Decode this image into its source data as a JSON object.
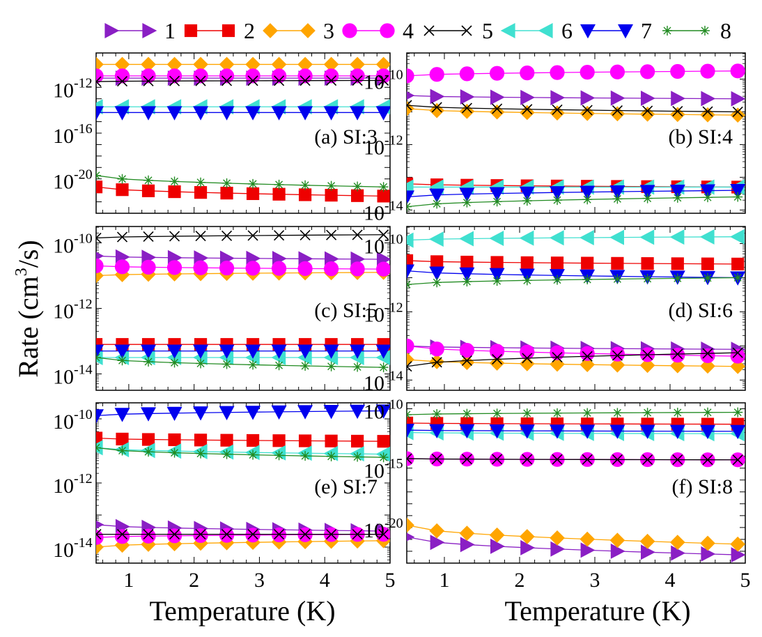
{
  "chart_data": {
    "type": "line",
    "y_scale": "log",
    "xlabel": "Temperature (K)",
    "ylabel_parts": {
      "main": "Rate (cm",
      "sup": "3",
      "tail": "/s)"
    },
    "legend": [
      {
        "name": "1",
        "color": "#8a1fc4",
        "marker": "tri-right"
      },
      {
        "name": "2",
        "color": "#ee0000",
        "marker": "square"
      },
      {
        "name": "3",
        "color": "#ffa500",
        "marker": "diamond"
      },
      {
        "name": "4",
        "color": "#ff00ff",
        "marker": "circle"
      },
      {
        "name": "5",
        "color": "#000000",
        "marker": "x"
      },
      {
        "name": "6",
        "color": "#40e0d0",
        "marker": "tri-left"
      },
      {
        "name": "7",
        "color": "#0000ee",
        "marker": "tri-down"
      },
      {
        "name": "8",
        "color": "#228b22",
        "marker": "star"
      }
    ],
    "x": [
      0.5,
      0.9,
      1.3,
      1.7,
      2.1,
      2.5,
      2.9,
      3.3,
      3.7,
      4.1,
      4.5,
      4.9
    ],
    "xlim": [
      0.5,
      5
    ],
    "xticks": [
      "1",
      "2",
      "3",
      "4",
      "5"
    ],
    "panels": [
      {
        "label": "(a) SI:3",
        "ylim_exp": [
          -23,
          -9
        ],
        "yticks": [
          {
            "base": "10",
            "exp": "-12"
          },
          {
            "base": "10",
            "exp": "-16"
          },
          {
            "base": "10",
            "exp": "-20"
          }
        ],
        "series": {
          "1": {
            "start": -11.2,
            "end": -11.2
          },
          "2": {
            "start": -20.7,
            "end": -21.5
          },
          "3": {
            "start": -10.0,
            "end": -10.0
          },
          "4": {
            "start": -11.0,
            "end": -11.0
          },
          "5": {
            "start": -11.5,
            "end": -11.4
          },
          "6": {
            "start": -13.7,
            "end": -13.7
          },
          "7": {
            "start": -14.2,
            "end": -14.2
          },
          "8": {
            "start": -19.7,
            "end": -20.7
          }
        }
      },
      {
        "label": "(b)  SI:4",
        "ylim_exp": [
          -14.1,
          -9.2
        ],
        "yticks": [
          {
            "base": "10",
            "exp": "-10"
          },
          {
            "base": "10",
            "exp": "-12"
          },
          {
            "base": "10",
            "exp": "-14"
          }
        ],
        "series": {
          "1": {
            "start": -10.5,
            "end": -10.6
          },
          "2": {
            "start": -13.2,
            "end": -13.3
          },
          "3": {
            "start": -10.9,
            "end": -11.1
          },
          "4": {
            "start": -9.9,
            "end": -9.75
          },
          "5": {
            "start": -10.8,
            "end": -11.0
          },
          "6": {
            "start": -13.3,
            "end": -13.3
          },
          "7": {
            "start": -13.6,
            "end": -13.4
          },
          "8": {
            "start": -13.9,
            "end": -13.6
          }
        }
      },
      {
        "label": "(c) SI:5",
        "ylim_exp": [
          -14.5,
          -9.5
        ],
        "yticks": [
          {
            "base": "10",
            "exp": "-10"
          },
          {
            "base": "10",
            "exp": "-12"
          },
          {
            "base": "10",
            "exp": "-14"
          }
        ],
        "series": {
          "1": {
            "start": -10.4,
            "end": -10.5
          },
          "2": {
            "start": -13.1,
            "end": -13.1
          },
          "3": {
            "start": -11.0,
            "end": -10.9
          },
          "4": {
            "start": -10.7,
            "end": -10.8
          },
          "5": {
            "start": -9.85,
            "end": -9.75
          },
          "6": {
            "start": -13.5,
            "end": -13.5
          },
          "7": {
            "start": -13.3,
            "end": -13.3
          },
          "8": {
            "start": -13.5,
            "end": -13.8
          }
        }
      },
      {
        "label": "(d) SI:6",
        "ylim_exp": [
          -14.3,
          -9.5
        ],
        "yticks": [
          {
            "base": "10",
            "exp": "-10"
          },
          {
            "base": "10",
            "exp": "-12"
          },
          {
            "base": "10",
            "exp": "-14"
          }
        ],
        "series": {
          "1": {
            "start": -13.0,
            "end": -13.1
          },
          "2": {
            "start": -10.5,
            "end": -10.6
          },
          "3": {
            "start": -13.4,
            "end": -13.6
          },
          "4": {
            "start": -13.0,
            "end": -13.3
          },
          "5": {
            "start": -13.6,
            "end": -13.2
          },
          "6": {
            "start": -9.9,
            "end": -9.8
          },
          "7": {
            "start": -10.8,
            "end": -11.0
          },
          "8": {
            "start": -11.2,
            "end": -11.0
          }
        }
      },
      {
        "label": "(e) SI:7",
        "ylim_exp": [
          -14.5,
          -9.5
        ],
        "yticks": [
          {
            "base": "10",
            "exp": "-10"
          },
          {
            "base": "10",
            "exp": "-12"
          },
          {
            "base": "10",
            "exp": "-14"
          }
        ],
        "series": {
          "1": {
            "start": -13.3,
            "end": -13.5
          },
          "2": {
            "start": -10.6,
            "end": -10.7
          },
          "3": {
            "start": -14.0,
            "end": -13.8
          },
          "4": {
            "start": -13.7,
            "end": -13.6
          },
          "5": {
            "start": -13.6,
            "end": -13.6
          },
          "6": {
            "start": -10.9,
            "end": -11.1
          },
          "7": {
            "start": -9.9,
            "end": -9.75
          },
          "8": {
            "start": -10.9,
            "end": -11.2
          }
        }
      },
      {
        "label": "(f) SI:8",
        "ylim_exp": [
          -23,
          -9.5
        ],
        "yticks": [
          {
            "base": "10",
            "exp": "-10"
          },
          {
            "base": "10",
            "exp": "-15"
          },
          {
            "base": "10",
            "exp": "-20"
          }
        ],
        "series": {
          "1": {
            "start": -20.8,
            "end": -22.3
          },
          "2": {
            "start": -11.2,
            "end": -11.3
          },
          "3": {
            "start": -19.8,
            "end": -21.4
          },
          "4": {
            "start": -14.2,
            "end": -14.3
          },
          "5": {
            "start": -14.2,
            "end": -14.3
          },
          "6": {
            "start": -12.0,
            "end": -12.1
          },
          "7": {
            "start": -11.8,
            "end": -11.9
          },
          "8": {
            "start": -10.5,
            "end": -10.3
          }
        }
      }
    ]
  }
}
